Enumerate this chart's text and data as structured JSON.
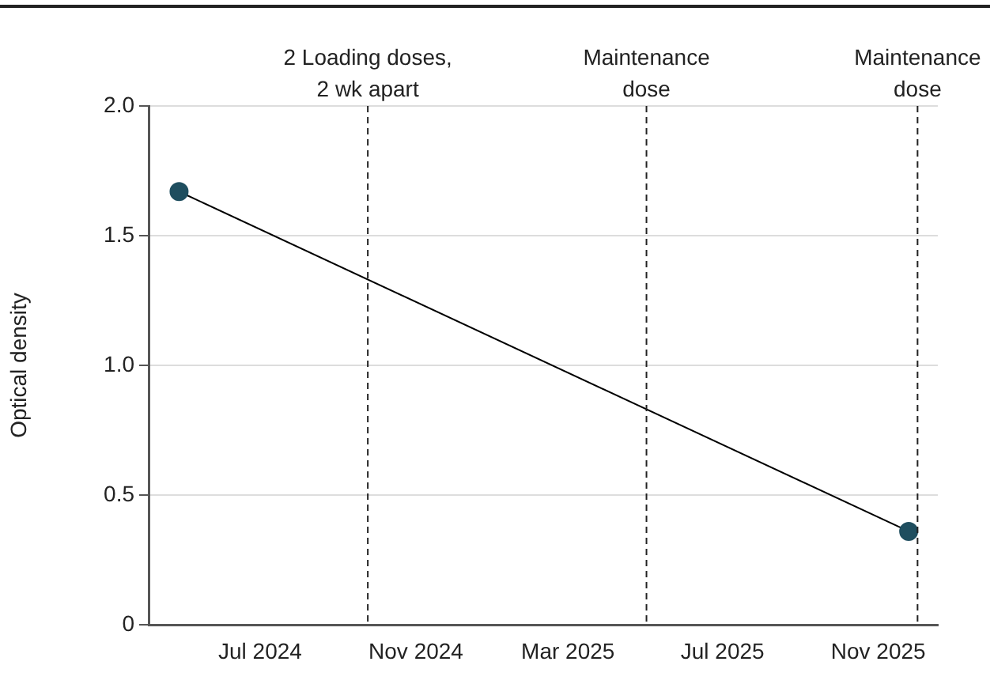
{
  "chart_data": {
    "type": "line",
    "ylabel": "Optical density",
    "x": [
      "2024-04-28",
      "2025-11-25"
    ],
    "series": [
      {
        "color": "#1f4e5f",
        "values": [
          1.67,
          0.36
        ]
      }
    ],
    "xlim": [
      "2024-04-04",
      "2025-12-18"
    ],
    "xticks": [
      {
        "value": "2024-07-01",
        "label": "Jul 2024"
      },
      {
        "value": "2024-11-01",
        "label": "Nov 2024"
      },
      {
        "value": "2025-03-01",
        "label": "Mar 2025"
      },
      {
        "value": "2025-07-01",
        "label": "Jul 2025"
      },
      {
        "value": "2025-11-01",
        "label": "Nov 2025"
      }
    ],
    "ylim": [
      0,
      2
    ],
    "yticks": [
      0,
      {
        "value": 0.5,
        "label": "0.5"
      },
      {
        "value": 1,
        "label": "1.0"
      },
      {
        "value": 1.5,
        "label": "1.5"
      },
      {
        "value": 2,
        "label": "2.0"
      }
    ],
    "ref_lines": [
      {
        "axis": "x",
        "value": "2024-09-24",
        "label": "2 Loading doses,\n2 wk apart",
        "line_style": "dashed"
      },
      {
        "axis": "x",
        "value": "2025-05-02",
        "label": "Maintenance\ndose",
        "line_style": "dashed"
      },
      {
        "axis": "x",
        "value": "2025-12-02",
        "label": "Maintenance\ndose",
        "line_style": "dashed"
      }
    ],
    "grid": "y",
    "legend": false,
    "marker": "circle",
    "line_style": "solid"
  }
}
